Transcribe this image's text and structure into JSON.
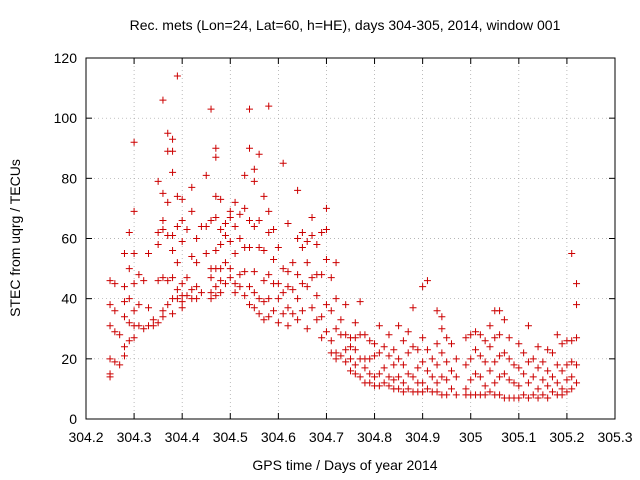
{
  "chart_data": {
    "type": "scatter",
    "title": "Rec. mets (Lon=24, Lat=60, h=HE), days 304-305, 2014, window 001",
    "xlabel": "GPS time / Days of year 2014",
    "ylabel": "STEC from uqrg / TECUs",
    "xlim": [
      304.2,
      305.3
    ],
    "ylim": [
      0,
      120
    ],
    "xticks": [
      304.2,
      304.3,
      304.4,
      304.5,
      304.6,
      304.7,
      304.8,
      304.9,
      305,
      305.1,
      305.2,
      305.3
    ],
    "xtick_labels": [
      "304.2",
      "304.3",
      "304.4",
      "304.5",
      "304.6",
      "304.7",
      "304.8",
      "304.9",
      "305",
      "305.1",
      "305.2",
      "305.3"
    ],
    "yticks": [
      0,
      20,
      40,
      60,
      80,
      100,
      120
    ],
    "ytick_labels": [
      "0",
      "20",
      "40",
      "60",
      "80",
      "100",
      "120"
    ],
    "grid": true,
    "marker": "+",
    "color": "#cc0000",
    "points": [
      [
        304.25,
        46
      ],
      [
        304.25,
        38
      ],
      [
        304.25,
        31
      ],
      [
        304.25,
        20
      ],
      [
        304.25,
        15
      ],
      [
        304.25,
        14
      ],
      [
        304.26,
        45
      ],
      [
        304.26,
        36
      ],
      [
        304.26,
        29
      ],
      [
        304.26,
        19
      ],
      [
        304.27,
        18
      ],
      [
        304.27,
        28
      ],
      [
        304.28,
        55
      ],
      [
        304.28,
        44
      ],
      [
        304.28,
        39
      ],
      [
        304.28,
        34
      ],
      [
        304.28,
        24
      ],
      [
        304.28,
        21
      ],
      [
        304.29,
        62
      ],
      [
        304.29,
        50
      ],
      [
        304.29,
        40
      ],
      [
        304.29,
        32
      ],
      [
        304.29,
        26
      ],
      [
        304.3,
        92
      ],
      [
        304.3,
        69
      ],
      [
        304.3,
        55
      ],
      [
        304.3,
        45
      ],
      [
        304.3,
        36
      ],
      [
        304.3,
        31
      ],
      [
        304.3,
        27
      ],
      [
        304.31,
        48
      ],
      [
        304.31,
        38
      ],
      [
        304.31,
        31
      ],
      [
        304.32,
        46
      ],
      [
        304.32,
        30
      ],
      [
        304.33,
        55
      ],
      [
        304.33,
        37
      ],
      [
        304.33,
        31
      ],
      [
        304.34,
        31
      ],
      [
        304.34,
        33
      ],
      [
        304.35,
        79
      ],
      [
        304.35,
        62
      ],
      [
        304.35,
        58
      ],
      [
        304.35,
        46
      ],
      [
        304.35,
        32
      ],
      [
        304.36,
        106
      ],
      [
        304.36,
        75
      ],
      [
        304.36,
        66
      ],
      [
        304.36,
        63
      ],
      [
        304.36,
        47
      ],
      [
        304.36,
        36
      ],
      [
        304.36,
        34
      ],
      [
        304.37,
        95
      ],
      [
        304.37,
        89
      ],
      [
        304.37,
        72
      ],
      [
        304.37,
        61
      ],
      [
        304.37,
        46
      ],
      [
        304.37,
        38
      ],
      [
        304.38,
        93
      ],
      [
        304.38,
        89
      ],
      [
        304.38,
        82
      ],
      [
        304.38,
        61
      ],
      [
        304.38,
        56
      ],
      [
        304.38,
        47
      ],
      [
        304.38,
        40
      ],
      [
        304.38,
        35
      ],
      [
        304.39,
        114
      ],
      [
        304.39,
        74
      ],
      [
        304.39,
        64
      ],
      [
        304.39,
        52
      ],
      [
        304.39,
        43
      ],
      [
        304.39,
        40
      ],
      [
        304.4,
        73
      ],
      [
        304.4,
        66
      ],
      [
        304.4,
        59
      ],
      [
        304.4,
        45
      ],
      [
        304.4,
        41
      ],
      [
        304.4,
        39
      ],
      [
        304.4,
        37
      ],
      [
        304.41,
        63
      ],
      [
        304.41,
        47
      ],
      [
        304.41,
        41
      ],
      [
        304.42,
        77
      ],
      [
        304.42,
        69
      ],
      [
        304.42,
        54
      ],
      [
        304.42,
        43
      ],
      [
        304.42,
        40
      ],
      [
        304.43,
        60
      ],
      [
        304.43,
        52
      ],
      [
        304.43,
        44
      ],
      [
        304.43,
        40
      ],
      [
        304.44,
        64
      ],
      [
        304.44,
        42
      ],
      [
        304.45,
        81
      ],
      [
        304.45,
        64
      ],
      [
        304.45,
        55
      ],
      [
        304.46,
        103
      ],
      [
        304.46,
        66
      ],
      [
        304.46,
        50
      ],
      [
        304.46,
        47
      ],
      [
        304.46,
        42
      ],
      [
        304.46,
        40
      ],
      [
        304.47,
        90
      ],
      [
        304.47,
        87
      ],
      [
        304.47,
        74
      ],
      [
        304.47,
        67
      ],
      [
        304.47,
        56
      ],
      [
        304.47,
        50
      ],
      [
        304.47,
        44
      ],
      [
        304.47,
        41
      ],
      [
        304.48,
        73
      ],
      [
        304.48,
        63
      ],
      [
        304.48,
        58
      ],
      [
        304.48,
        50
      ],
      [
        304.48,
        46
      ],
      [
        304.48,
        42
      ],
      [
        304.49,
        65
      ],
      [
        304.49,
        61
      ],
      [
        304.49,
        52
      ],
      [
        304.49,
        45
      ],
      [
        304.5,
        69
      ],
      [
        304.5,
        67
      ],
      [
        304.5,
        59
      ],
      [
        304.5,
        50
      ],
      [
        304.5,
        47
      ],
      [
        304.51,
        72
      ],
      [
        304.51,
        64
      ],
      [
        304.51,
        55
      ],
      [
        304.51,
        45
      ],
      [
        304.51,
        42
      ],
      [
        304.52,
        68
      ],
      [
        304.52,
        60
      ],
      [
        304.52,
        48
      ],
      [
        304.52,
        44
      ],
      [
        304.53,
        81
      ],
      [
        304.53,
        70
      ],
      [
        304.53,
        57
      ],
      [
        304.53,
        49
      ],
      [
        304.53,
        41
      ],
      [
        304.54,
        103
      ],
      [
        304.54,
        90
      ],
      [
        304.54,
        66
      ],
      [
        304.54,
        57
      ],
      [
        304.54,
        44
      ],
      [
        304.54,
        38
      ],
      [
        304.55,
        83
      ],
      [
        304.55,
        79
      ],
      [
        304.55,
        64
      ],
      [
        304.55,
        49
      ],
      [
        304.55,
        42
      ],
      [
        304.55,
        37
      ],
      [
        304.56,
        88
      ],
      [
        304.56,
        66
      ],
      [
        304.56,
        57
      ],
      [
        304.56,
        40
      ],
      [
        304.56,
        35
      ],
      [
        304.57,
        74
      ],
      [
        304.57,
        56
      ],
      [
        304.57,
        46
      ],
      [
        304.57,
        39
      ],
      [
        304.57,
        33
      ],
      [
        304.58,
        104
      ],
      [
        304.58,
        69
      ],
      [
        304.58,
        62
      ],
      [
        304.58,
        48
      ],
      [
        304.58,
        40
      ],
      [
        304.58,
        34
      ],
      [
        304.59,
        63
      ],
      [
        304.59,
        53
      ],
      [
        304.59,
        45
      ],
      [
        304.59,
        36
      ],
      [
        304.6,
        57
      ],
      [
        304.6,
        45
      ],
      [
        304.6,
        40
      ],
      [
        304.6,
        32
      ],
      [
        304.61,
        85
      ],
      [
        304.61,
        50
      ],
      [
        304.61,
        42
      ],
      [
        304.61,
        35
      ],
      [
        304.62,
        65
      ],
      [
        304.62,
        49
      ],
      [
        304.62,
        44
      ],
      [
        304.62,
        37
      ],
      [
        304.62,
        31
      ],
      [
        304.63,
        52
      ],
      [
        304.63,
        43
      ],
      [
        304.63,
        35
      ],
      [
        304.64,
        76
      ],
      [
        304.64,
        60
      ],
      [
        304.64,
        48
      ],
      [
        304.64,
        40
      ],
      [
        304.64,
        33
      ],
      [
        304.65,
        62
      ],
      [
        304.65,
        57
      ],
      [
        304.65,
        45
      ],
      [
        304.65,
        36
      ],
      [
        304.66,
        59
      ],
      [
        304.66,
        52
      ],
      [
        304.66,
        44
      ],
      [
        304.66,
        30
      ],
      [
        304.67,
        67
      ],
      [
        304.67,
        61
      ],
      [
        304.67,
        47
      ],
      [
        304.67,
        37
      ],
      [
        304.68,
        58
      ],
      [
        304.68,
        48
      ],
      [
        304.68,
        41
      ],
      [
        304.68,
        33
      ],
      [
        304.69,
        62
      ],
      [
        304.69,
        48
      ],
      [
        304.69,
        34
      ],
      [
        304.69,
        27
      ],
      [
        304.7,
        70
      ],
      [
        304.7,
        63
      ],
      [
        304.7,
        53
      ],
      [
        304.7,
        38
      ],
      [
        304.7,
        29
      ],
      [
        304.71,
        47
      ],
      [
        304.71,
        36
      ],
      [
        304.71,
        26
      ],
      [
        304.71,
        22
      ],
      [
        304.72,
        52
      ],
      [
        304.72,
        40
      ],
      [
        304.72,
        30
      ],
      [
        304.72,
        22
      ],
      [
        304.72,
        20
      ],
      [
        304.73,
        33
      ],
      [
        304.73,
        28
      ],
      [
        304.73,
        21
      ],
      [
        304.74,
        38
      ],
      [
        304.74,
        28
      ],
      [
        304.74,
        23
      ],
      [
        304.74,
        19
      ],
      [
        304.75,
        27
      ],
      [
        304.75,
        24
      ],
      [
        304.75,
        20
      ],
      [
        304.75,
        16
      ],
      [
        304.76,
        32
      ],
      [
        304.76,
        27
      ],
      [
        304.76,
        23
      ],
      [
        304.76,
        18
      ],
      [
        304.76,
        15
      ],
      [
        304.77,
        39
      ],
      [
        304.77,
        28
      ],
      [
        304.77,
        20
      ],
      [
        304.77,
        14
      ],
      [
        304.78,
        28
      ],
      [
        304.78,
        20
      ],
      [
        304.78,
        17
      ],
      [
        304.78,
        12
      ],
      [
        304.79,
        26
      ],
      [
        304.79,
        20
      ],
      [
        304.79,
        15
      ],
      [
        304.79,
        12
      ],
      [
        304.8,
        25
      ],
      [
        304.8,
        21
      ],
      [
        304.8,
        14
      ],
      [
        304.8,
        11
      ],
      [
        304.81,
        31
      ],
      [
        304.81,
        22
      ],
      [
        304.81,
        15
      ],
      [
        304.81,
        11
      ],
      [
        304.82,
        24
      ],
      [
        304.82,
        17
      ],
      [
        304.82,
        12
      ],
      [
        304.83,
        28
      ],
      [
        304.83,
        21
      ],
      [
        304.83,
        14
      ],
      [
        304.83,
        11
      ],
      [
        304.84,
        23
      ],
      [
        304.84,
        18
      ],
      [
        304.84,
        13
      ],
      [
        304.84,
        10
      ],
      [
        304.85,
        31
      ],
      [
        304.85,
        20
      ],
      [
        304.85,
        14
      ],
      [
        304.85,
        10
      ],
      [
        304.86,
        26
      ],
      [
        304.86,
        18
      ],
      [
        304.86,
        12
      ],
      [
        304.86,
        9
      ],
      [
        304.87,
        29
      ],
      [
        304.87,
        22
      ],
      [
        304.87,
        15
      ],
      [
        304.87,
        10
      ],
      [
        304.88,
        37
      ],
      [
        304.88,
        24
      ],
      [
        304.88,
        14
      ],
      [
        304.88,
        9
      ],
      [
        304.89,
        23
      ],
      [
        304.89,
        17
      ],
      [
        304.89,
        12
      ],
      [
        304.89,
        9
      ],
      [
        304.9,
        44
      ],
      [
        304.9,
        27
      ],
      [
        304.9,
        19
      ],
      [
        304.9,
        12
      ],
      [
        304.9,
        9
      ],
      [
        304.91,
        46
      ],
      [
        304.91,
        23
      ],
      [
        304.91,
        16
      ],
      [
        304.91,
        10
      ],
      [
        304.92,
        20
      ],
      [
        304.92,
        14
      ],
      [
        304.92,
        9
      ],
      [
        304.93,
        36
      ],
      [
        304.93,
        25
      ],
      [
        304.93,
        18
      ],
      [
        304.93,
        12
      ],
      [
        304.93,
        9
      ],
      [
        304.94,
        34
      ],
      [
        304.94,
        30
      ],
      [
        304.94,
        22
      ],
      [
        304.94,
        14
      ],
      [
        304.94,
        8
      ],
      [
        304.95,
        27
      ],
      [
        304.95,
        19
      ],
      [
        304.95,
        13
      ],
      [
        304.95,
        8
      ],
      [
        304.96,
        25
      ],
      [
        304.96,
        16
      ],
      [
        304.96,
        10
      ],
      [
        304.97,
        20
      ],
      [
        304.97,
        14
      ],
      [
        304.97,
        8
      ],
      [
        304.99,
        27
      ],
      [
        304.99,
        18
      ],
      [
        304.99,
        10
      ],
      [
        304.99,
        8
      ],
      [
        305.0,
        28
      ],
      [
        305.0,
        20
      ],
      [
        305.0,
        13
      ],
      [
        305.0,
        8
      ],
      [
        305.01,
        29
      ],
      [
        305.01,
        23
      ],
      [
        305.01,
        15
      ],
      [
        305.01,
        8
      ],
      [
        305.02,
        28
      ],
      [
        305.02,
        21
      ],
      [
        305.02,
        14
      ],
      [
        305.02,
        8
      ],
      [
        305.03,
        26
      ],
      [
        305.03,
        19
      ],
      [
        305.03,
        11
      ],
      [
        305.03,
        8
      ],
      [
        305.04,
        31
      ],
      [
        305.04,
        24
      ],
      [
        305.04,
        16
      ],
      [
        305.04,
        9
      ],
      [
        305.05,
        36
      ],
      [
        305.05,
        27
      ],
      [
        305.05,
        19
      ],
      [
        305.05,
        12
      ],
      [
        305.05,
        8
      ],
      [
        305.06,
        36
      ],
      [
        305.06,
        28
      ],
      [
        305.06,
        21
      ],
      [
        305.06,
        14
      ],
      [
        305.06,
        8
      ],
      [
        305.07,
        33
      ],
      [
        305.07,
        22
      ],
      [
        305.07,
        15
      ],
      [
        305.07,
        7
      ],
      [
        305.08,
        27
      ],
      [
        305.08,
        20
      ],
      [
        305.08,
        13
      ],
      [
        305.08,
        7
      ],
      [
        305.09,
        18
      ],
      [
        305.09,
        12
      ],
      [
        305.09,
        7
      ],
      [
        305.1,
        25
      ],
      [
        305.1,
        17
      ],
      [
        305.1,
        11
      ],
      [
        305.1,
        7
      ],
      [
        305.11,
        22
      ],
      [
        305.11,
        15
      ],
      [
        305.11,
        8
      ],
      [
        305.12,
        31
      ],
      [
        305.12,
        19
      ],
      [
        305.12,
        12
      ],
      [
        305.12,
        7
      ],
      [
        305.13,
        20
      ],
      [
        305.13,
        14
      ],
      [
        305.13,
        8
      ],
      [
        305.14,
        24
      ],
      [
        305.14,
        17
      ],
      [
        305.14,
        10
      ],
      [
        305.14,
        7
      ],
      [
        305.15,
        19
      ],
      [
        305.15,
        13
      ],
      [
        305.15,
        8
      ],
      [
        305.16,
        23
      ],
      [
        305.16,
        16
      ],
      [
        305.16,
        11
      ],
      [
        305.16,
        7
      ],
      [
        305.17,
        22
      ],
      [
        305.17,
        14
      ],
      [
        305.17,
        9
      ],
      [
        305.18,
        28
      ],
      [
        305.18,
        18
      ],
      [
        305.18,
        12
      ],
      [
        305.18,
        8
      ],
      [
        305.19,
        25
      ],
      [
        305.19,
        16
      ],
      [
        305.19,
        10
      ],
      [
        305.19,
        8
      ],
      [
        305.2,
        26
      ],
      [
        305.2,
        18
      ],
      [
        305.2,
        13
      ],
      [
        305.2,
        9
      ],
      [
        305.21,
        55
      ],
      [
        305.21,
        26
      ],
      [
        305.21,
        19
      ],
      [
        305.21,
        14
      ],
      [
        305.21,
        10
      ],
      [
        305.22,
        45
      ],
      [
        305.22,
        38
      ],
      [
        305.22,
        27
      ],
      [
        305.22,
        18
      ],
      [
        305.22,
        12
      ]
    ]
  }
}
